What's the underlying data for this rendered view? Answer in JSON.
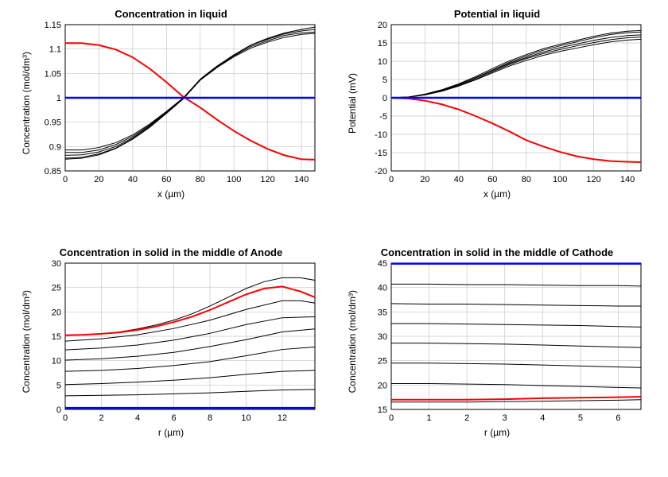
{
  "global": {
    "background_color": "#ffffff",
    "grid_color": "#c8c8c8",
    "border_color": "#000000",
    "tick_font_size": 11,
    "label_font_size": 12,
    "title_font_size": 13,
    "colors": {
      "black": "#000000",
      "red": "#ff0000",
      "blue": "#0000ff"
    },
    "line_width_black": 1.0,
    "line_width_red": 2.0,
    "line_width_blue": 2.5
  },
  "panels": {
    "tl": {
      "title": "Concentration in liquid",
      "xlabel": "x (µm)",
      "ylabel": "Concentration (mol/dm³)",
      "xlim": [
        0,
        148
      ],
      "ylim": [
        0.85,
        1.15
      ],
      "xticks": [
        0,
        20,
        40,
        60,
        80,
        100,
        120,
        140
      ],
      "yticks": [
        0.85,
        0.9,
        0.95,
        1.0,
        1.05,
        1.1,
        1.15
      ],
      "series": {
        "blue": {
          "x": [
            0,
            148
          ],
          "y": [
            1.0,
            1.0
          ]
        },
        "red": {
          "x": [
            0,
            10,
            20,
            30,
            40,
            50,
            60,
            70,
            80,
            90,
            100,
            110,
            120,
            130,
            140,
            148
          ],
          "y": [
            1.112,
            1.112,
            1.108,
            1.099,
            1.083,
            1.06,
            1.032,
            1.002,
            0.98,
            0.955,
            0.932,
            0.912,
            0.895,
            0.882,
            0.874,
            0.873
          ]
        },
        "black": [
          {
            "x": [
              0,
              10,
              20,
              30,
              40,
              50,
              60,
              70,
              80,
              90,
              100,
              110,
              120,
              130,
              140,
              148
            ],
            "y": [
              0.893,
              0.893,
              0.898,
              0.908,
              0.924,
              0.946,
              0.972,
              1.0,
              1.038,
              1.065,
              1.088,
              1.108,
              1.122,
              1.133,
              1.14,
              1.145
            ]
          },
          {
            "x": [
              0,
              10,
              20,
              30,
              40,
              50,
              60,
              70,
              80,
              90,
              100,
              110,
              120,
              130,
              140,
              148
            ],
            "y": [
              0.888,
              0.888,
              0.893,
              0.904,
              0.921,
              0.944,
              0.971,
              0.999,
              1.038,
              1.065,
              1.088,
              1.108,
              1.122,
              1.133,
              1.14,
              1.145
            ]
          },
          {
            "x": [
              0,
              10,
              20,
              30,
              40,
              50,
              60,
              70,
              80,
              90,
              100,
              110,
              120,
              130,
              140,
              148
            ],
            "y": [
              0.882,
              0.883,
              0.889,
              0.9,
              0.918,
              0.942,
              0.97,
              0.999,
              1.038,
              1.065,
              1.088,
              1.108,
              1.12,
              1.131,
              1.137,
              1.14
            ]
          },
          {
            "x": [
              0,
              10,
              20,
              30,
              40,
              50,
              60,
              70,
              80,
              90,
              100,
              110,
              120,
              130,
              140,
              148
            ],
            "y": [
              0.876,
              0.878,
              0.885,
              0.897,
              0.916,
              0.94,
              0.968,
              0.998,
              1.037,
              1.063,
              1.086,
              1.105,
              1.117,
              1.128,
              1.133,
              1.135
            ]
          },
          {
            "x": [
              0,
              10,
              20,
              30,
              40,
              50,
              60,
              70,
              80,
              90,
              100,
              110,
              120,
              130,
              140,
              148
            ],
            "y": [
              0.874,
              0.876,
              0.883,
              0.896,
              0.915,
              0.939,
              0.968,
              0.998,
              1.036,
              1.062,
              1.084,
              1.102,
              1.114,
              1.124,
              1.13,
              1.132
            ]
          },
          {
            "x": [
              0,
              10,
              20,
              30,
              40,
              50,
              60,
              70,
              80,
              90,
              100,
              110,
              120,
              130,
              140,
              148
            ],
            "y": [
              1.112,
              1.112,
              1.108,
              1.099,
              1.083,
              1.06,
              1.032,
              1.002,
              0.98,
              0.955,
              0.932,
              0.912,
              0.895,
              0.882,
              0.874,
              0.873
            ]
          }
        ]
      }
    },
    "tr": {
      "title": "Potential in liquid",
      "xlabel": "x (µm)",
      "ylabel": "Potential (mV)",
      "xlim": [
        0,
        148
      ],
      "ylim": [
        -20,
        20
      ],
      "xticks": [
        0,
        20,
        40,
        60,
        80,
        100,
        120,
        140
      ],
      "yticks": [
        -20,
        -15,
        -10,
        -5,
        0,
        5,
        10,
        15,
        20
      ],
      "series": {
        "blue": {
          "x": [
            0,
            148
          ],
          "y": [
            0,
            0
          ]
        },
        "red": {
          "x": [
            0,
            10,
            20,
            30,
            40,
            50,
            60,
            70,
            80,
            90,
            100,
            110,
            120,
            130,
            140,
            148
          ],
          "y": [
            0,
            -0.2,
            -0.8,
            -1.8,
            -3.2,
            -5.0,
            -7.0,
            -9.2,
            -11.6,
            -13.3,
            -14.8,
            -16.0,
            -16.8,
            -17.3,
            -17.5,
            -17.6
          ]
        },
        "black": [
          {
            "x": [
              0,
              10,
              20,
              30,
              40,
              50,
              60,
              70,
              80,
              90,
              100,
              110,
              120,
              130,
              140,
              148
            ],
            "y": [
              0,
              0.2,
              0.9,
              2.0,
              3.6,
              5.5,
              7.6,
              9.7,
              11.4,
              13.0,
              14.2,
              15.3,
              16.4,
              17.3,
              17.8,
              18.0
            ]
          },
          {
            "x": [
              0,
              10,
              20,
              30,
              40,
              50,
              60,
              70,
              80,
              90,
              100,
              110,
              120,
              130,
              140,
              148
            ],
            "y": [
              0,
              0.2,
              1.0,
              2.2,
              3.8,
              5.8,
              8.0,
              10.1,
              11.8,
              13.4,
              14.6,
              15.7,
              16.8,
              17.7,
              18.2,
              18.4
            ]
          },
          {
            "x": [
              0,
              10,
              20,
              30,
              40,
              50,
              60,
              70,
              80,
              90,
              100,
              110,
              120,
              130,
              140,
              148
            ],
            "y": [
              0,
              0.2,
              0.9,
              2.0,
              3.5,
              5.4,
              7.4,
              9.4,
              11.0,
              12.5,
              13.7,
              14.7,
              15.7,
              16.5,
              17.0,
              17.2
            ]
          },
          {
            "x": [
              0,
              10,
              20,
              30,
              40,
              50,
              60,
              70,
              80,
              90,
              100,
              110,
              120,
              130,
              140,
              148
            ],
            "y": [
              0,
              0.2,
              0.8,
              1.8,
              3.2,
              4.9,
              6.8,
              8.7,
              10.2,
              11.6,
              12.7,
              13.6,
              14.5,
              15.3,
              15.8,
              16.0
            ]
          },
          {
            "x": [
              0,
              10,
              20,
              30,
              40,
              50,
              60,
              70,
              80,
              90,
              100,
              110,
              120,
              130,
              140,
              148
            ],
            "y": [
              0,
              0.2,
              0.8,
              1.9,
              3.3,
              5.1,
              7.1,
              9.1,
              10.7,
              12.1,
              13.2,
              14.2,
              15.1,
              15.9,
              16.4,
              16.6
            ]
          }
        ]
      }
    },
    "bl": {
      "title": "Concentration in solid in the middle of Anode",
      "xlabel": "r (µm)",
      "ylabel": "Concentration (mol/dm³)",
      "xlim": [
        0,
        13.8
      ],
      "ylim": [
        0,
        30
      ],
      "xticks": [
        0,
        2,
        4,
        6,
        8,
        10,
        12
      ],
      "yticks": [
        0,
        5,
        10,
        15,
        20,
        25,
        30
      ],
      "series": {
        "blue": {
          "x": [
            0,
            13.8
          ],
          "y": [
            0.3,
            0.3
          ]
        },
        "red": {
          "x": [
            0,
            1,
            2,
            3,
            4,
            5,
            6,
            7,
            8,
            9,
            10,
            11,
            12,
            13,
            13.8
          ],
          "y": [
            15.2,
            15.3,
            15.5,
            15.8,
            16.3,
            17.0,
            17.9,
            19.0,
            20.4,
            22.0,
            23.6,
            24.8,
            25.2,
            24.2,
            23.0
          ]
        },
        "black": [
          {
            "x": [
              0,
              2,
              4,
              6,
              8,
              10,
              12,
              13.8
            ],
            "y": [
              2.8,
              2.9,
              3.0,
              3.2,
              3.4,
              3.7,
              4.0,
              4.1
            ]
          },
          {
            "x": [
              0,
              2,
              4,
              6,
              8,
              10,
              12,
              13.8
            ],
            "y": [
              5.1,
              5.3,
              5.6,
              6.0,
              6.5,
              7.2,
              7.8,
              8.0
            ]
          },
          {
            "x": [
              0,
              2,
              4,
              6,
              8,
              10,
              12,
              13.8
            ],
            "y": [
              7.8,
              8.0,
              8.4,
              9.0,
              9.8,
              11.0,
              12.3,
              12.8
            ]
          },
          {
            "x": [
              0,
              2,
              4,
              6,
              8,
              10,
              12,
              13.8
            ],
            "y": [
              10.1,
              10.4,
              10.9,
              11.7,
              12.9,
              14.3,
              15.9,
              16.5
            ]
          },
          {
            "x": [
              0,
              2,
              4,
              6,
              8,
              10,
              12,
              13.8
            ],
            "y": [
              12.2,
              12.6,
              13.2,
              14.2,
              15.6,
              17.4,
              18.8,
              19.0
            ]
          },
          {
            "x": [
              0,
              2,
              4,
              6,
              8,
              10,
              12,
              13,
              13.8
            ],
            "y": [
              14.0,
              14.5,
              15.3,
              16.6,
              18.3,
              20.5,
              22.3,
              22.3,
              21.8
            ]
          },
          {
            "x": [
              0,
              1,
              2,
              3,
              4,
              5,
              6,
              7,
              8,
              9,
              10,
              11,
              12,
              13,
              13.8
            ],
            "y": [
              15.2,
              15.3,
              15.5,
              15.9,
              16.5,
              17.3,
              18.3,
              19.6,
              21.2,
              23.0,
              24.8,
              26.2,
              27.0,
              27.0,
              26.5
            ]
          }
        ]
      }
    },
    "br": {
      "title": "Concentration in solid in the middle of Cathode",
      "xlabel": "r (µm)",
      "ylabel": "Concentration (mol/dm³)",
      "xlim": [
        0,
        6.6
      ],
      "ylim": [
        15,
        45
      ],
      "xticks": [
        0,
        1,
        2,
        3,
        4,
        5,
        6
      ],
      "yticks": [
        15,
        20,
        25,
        30,
        35,
        40,
        45
      ],
      "series": {
        "blue": {
          "x": [
            0,
            6.6
          ],
          "y": [
            44.9,
            44.9
          ]
        },
        "red": {
          "x": [
            0,
            1,
            2,
            3,
            4,
            5,
            6,
            6.6
          ],
          "y": [
            17.0,
            17.0,
            17.0,
            17.1,
            17.3,
            17.4,
            17.5,
            17.6
          ]
        },
        "black": [
          {
            "x": [
              0,
              1,
              2,
              3,
              4,
              5,
              6,
              6.6
            ],
            "y": [
              40.7,
              40.7,
              40.6,
              40.6,
              40.5,
              40.4,
              40.4,
              40.3
            ]
          },
          {
            "x": [
              0,
              1,
              2,
              3,
              4,
              5,
              6,
              6.6
            ],
            "y": [
              36.7,
              36.6,
              36.6,
              36.5,
              36.4,
              36.3,
              36.2,
              36.2
            ]
          },
          {
            "x": [
              0,
              1,
              2,
              3,
              4,
              5,
              6,
              6.6
            ],
            "y": [
              32.6,
              32.6,
              32.5,
              32.4,
              32.3,
              32.2,
              32.0,
              31.9
            ]
          },
          {
            "x": [
              0,
              1,
              2,
              3,
              4,
              5,
              6,
              6.6
            ],
            "y": [
              28.6,
              28.6,
              28.5,
              28.4,
              28.2,
              28.0,
              27.8,
              27.7
            ]
          },
          {
            "x": [
              0,
              1,
              2,
              3,
              4,
              5,
              6,
              6.6
            ],
            "y": [
              24.5,
              24.5,
              24.4,
              24.3,
              24.1,
              23.9,
              23.7,
              23.6
            ]
          },
          {
            "x": [
              0,
              1,
              2,
              3,
              4,
              5,
              6,
              6.6
            ],
            "y": [
              20.3,
              20.3,
              20.2,
              20.1,
              19.9,
              19.7,
              19.5,
              19.4
            ]
          },
          {
            "x": [
              0,
              1,
              2,
              3,
              4,
              5,
              6,
              6.6
            ],
            "y": [
              16.5,
              16.5,
              16.5,
              16.6,
              16.7,
              16.8,
              16.9,
              17.0
            ]
          }
        ]
      }
    }
  }
}
